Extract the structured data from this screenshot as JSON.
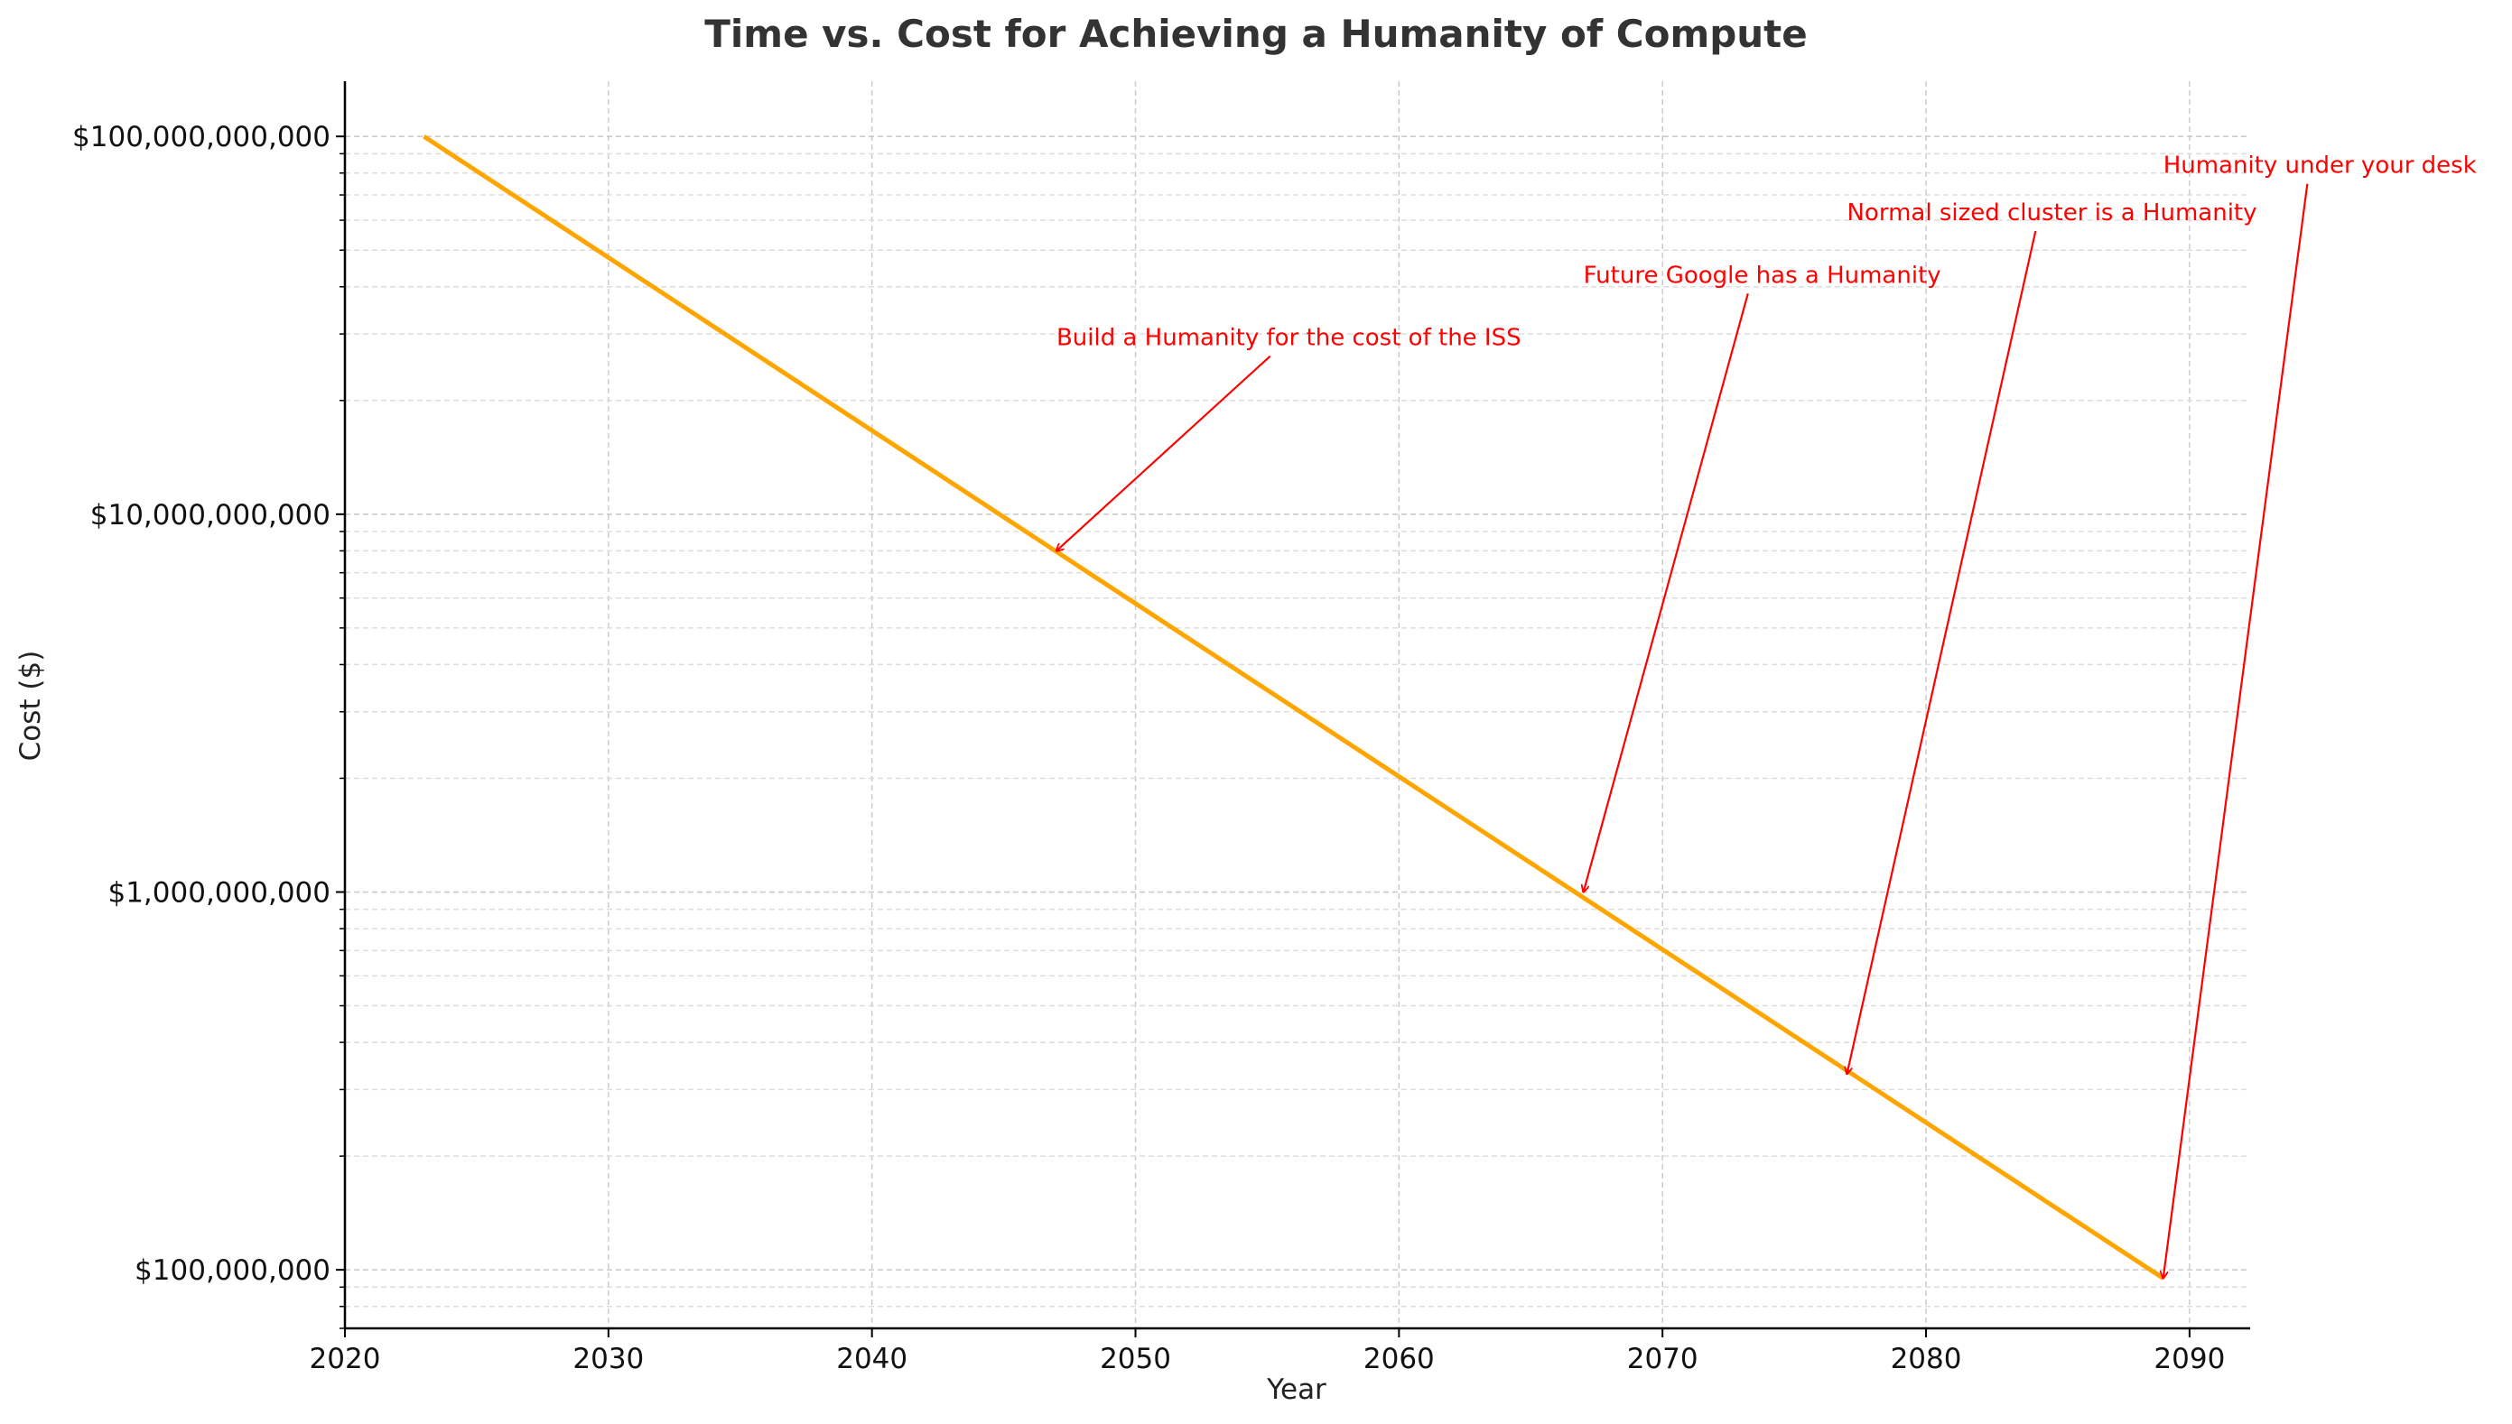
{
  "chart_data": {
    "type": "line",
    "title": "Time vs. Cost for Achieving a Humanity of Compute",
    "xlabel": "Year",
    "ylabel": "Cost ($)",
    "xlim": [
      2020,
      2092.3
    ],
    "ylim": [
      70000000,
      140000000000
    ],
    "yscale": "log",
    "grid": true,
    "x_ticks": [
      2020,
      2030,
      2040,
      2050,
      2060,
      2070,
      2080,
      2090
    ],
    "y_ticks": [
      {
        "value": 100000000000,
        "label": "$100,000,000,000"
      },
      {
        "value": 10000000000,
        "label": "$10,000,000,000"
      },
      {
        "value": 1000000000,
        "label": "$1,000,000,000"
      },
      {
        "value": 100000000,
        "label": "$100,000,000"
      }
    ],
    "series": [
      {
        "color": "#ffa500",
        "x": [
          2023,
          2089
        ],
        "y": [
          100000000000,
          95000000
        ]
      }
    ],
    "annotations": [
      {
        "text": "Build a Humanity for the cost of the ISS",
        "point": [
          2047,
          8000000000
        ],
        "text_pos": [
          2047,
          28000000000
        ]
      },
      {
        "text": "Future Google has a Humanity",
        "point": [
          2067,
          1000000000
        ],
        "text_pos": [
          2067,
          41000000000
        ]
      },
      {
        "text": "Normal sized cluster is a Humanity",
        "point": [
          2077,
          330000000
        ],
        "text_pos": [
          2077,
          60000000000
        ]
      },
      {
        "text": "Humanity under your desk",
        "point": [
          2089,
          95000000
        ],
        "text_pos": [
          2089,
          80000000000
        ]
      }
    ]
  }
}
